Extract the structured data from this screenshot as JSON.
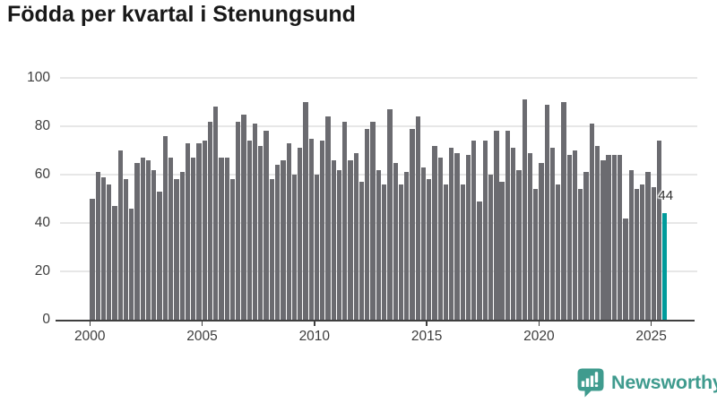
{
  "title": "Födda per kvartal i Stenungsund",
  "chart_data": {
    "type": "bar",
    "title": "Födda per kvartal i Stenungsund",
    "unit": "births per quarter",
    "start_year": 2000,
    "start_quarter": 1,
    "values": [
      50,
      61,
      59,
      56,
      47,
      70,
      58,
      46,
      65,
      67,
      66,
      62,
      53,
      76,
      67,
      58,
      61,
      73,
      67,
      73,
      74,
      82,
      88,
      67,
      67,
      58,
      82,
      85,
      74,
      81,
      72,
      78,
      58,
      64,
      66,
      73,
      60,
      71,
      90,
      75,
      60,
      74,
      84,
      66,
      62,
      82,
      66,
      69,
      57,
      79,
      82,
      62,
      56,
      87,
      65,
      56,
      61,
      79,
      84,
      63,
      58,
      72,
      67,
      56,
      71,
      69,
      56,
      68,
      74,
      49,
      74,
      60,
      78,
      57,
      78,
      71,
      62,
      91,
      69,
      54,
      65,
      89,
      71,
      56,
      90,
      68,
      70,
      54,
      61,
      81,
      72,
      66,
      68,
      68,
      68,
      42,
      62,
      54,
      56,
      61,
      55,
      74,
      44
    ],
    "highlight_index": 102,
    "annotation": {
      "text": "44",
      "target": "2025 Q3"
    },
    "x_tick_labels": [
      "2000",
      "2005",
      "2010",
      "2015",
      "2020",
      "2025"
    ],
    "y_ticks": [
      0,
      20,
      40,
      60,
      80,
      100
    ],
    "ylim": [
      0,
      100
    ],
    "grid": true,
    "legend": "none",
    "bar_color": "#6b6b70",
    "highlight_color": "#009b9b",
    "axis_color": "#3f3f3f",
    "grid_color": "#e7e7e7"
  },
  "footer": {
    "brand": "Newsworthy",
    "brand_color": "#3f9b8e",
    "icon": "newsworthy-chart-bubble-icon"
  }
}
